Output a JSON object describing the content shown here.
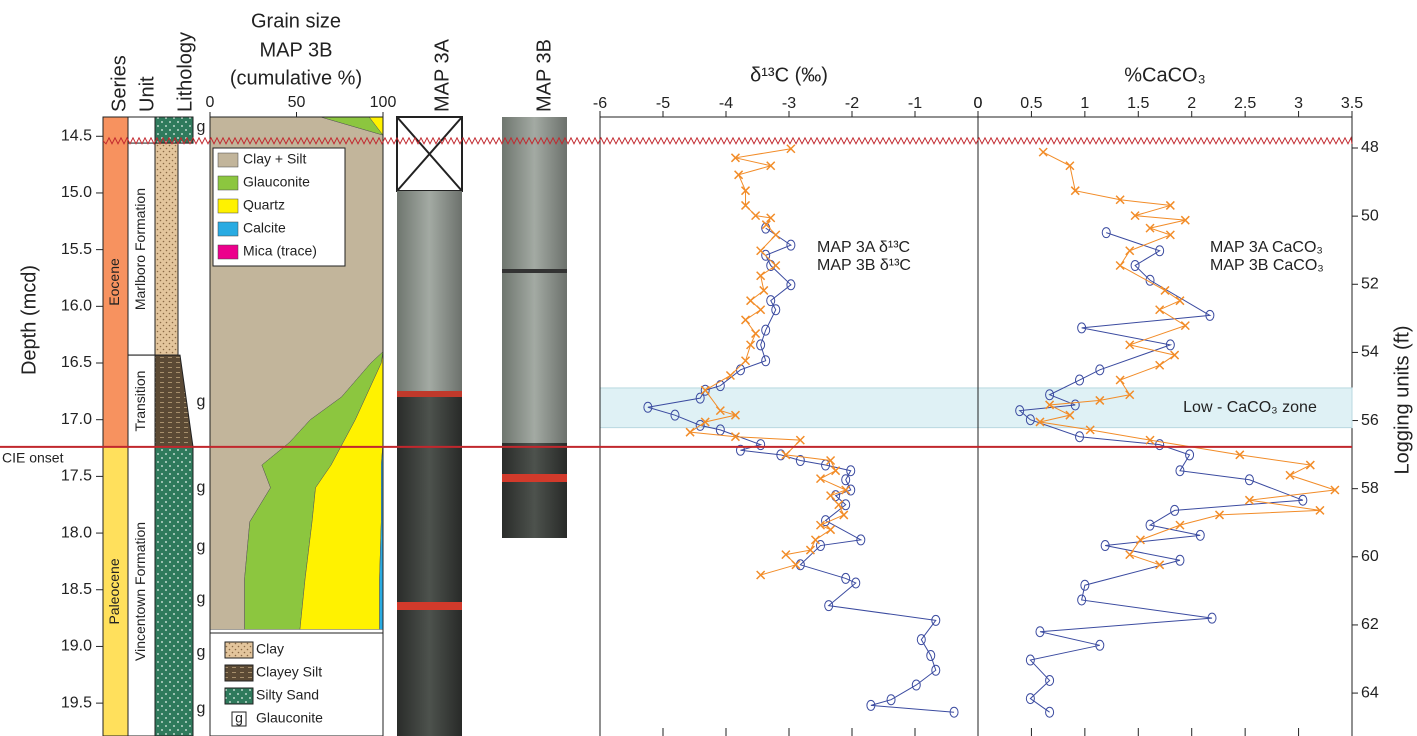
{
  "depth_axis": {
    "label": "Depth (mcd)",
    "ylim": [
      14.33,
      19.79
    ],
    "yticks": [
      14.5,
      {
        "value": 15,
        "label": "15.0"
      },
      15.5,
      {
        "value": 16,
        "label": "16.0"
      },
      16.5,
      {
        "value": 17,
        "label": "17.0"
      },
      17.5,
      {
        "value": 18,
        "label": "18.0"
      },
      18.5,
      {
        "value": 19,
        "label": "19.0"
      },
      19.5
    ]
  },
  "logging_axis": {
    "label": "Logging units (ft)",
    "y2lim": [
      47.09,
      65.26
    ],
    "y2ticks": [
      48,
      50,
      52,
      54,
      56,
      58,
      60,
      62,
      64
    ]
  },
  "cie_onset": {
    "label": "CIE onset",
    "depth": 17.24
  },
  "unconformity": {
    "depth": 14.54
  },
  "stratigraphy": {
    "headers": [
      "Series",
      "Unit",
      "Lithology"
    ],
    "series_units": [
      {
        "name": "Eocene",
        "top": 14.33,
        "base": 17.24,
        "color": "#f7925f"
      },
      {
        "name": "Paleocene",
        "top": 17.24,
        "base": 19.79,
        "color": "#ffe05c"
      }
    ],
    "formations": [
      {
        "name": "Marlboro Formation",
        "top": 14.56,
        "base": 16.43
      },
      {
        "name": "Transition",
        "top": 16.43,
        "base": 17.24
      },
      {
        "name": "Vincentown Formation",
        "top": 17.24,
        "base": 19.79
      }
    ],
    "lithology": [
      {
        "type": "Silty Sand",
        "top": 14.33,
        "base": 14.56
      },
      {
        "type": "Clay",
        "top": 14.56,
        "base": 16.43
      },
      {
        "type": "Clayey Silt",
        "top": 16.43,
        "base": 17.24
      },
      {
        "type": "Silty Sand",
        "top": 17.24,
        "base": 19.79
      }
    ],
    "glauconite_depths": [
      14.42,
      16.84,
      17.6,
      18.12,
      18.58,
      19.05,
      19.55
    ],
    "lithology_legend": [
      {
        "name": "Clay"
      },
      {
        "name": "Clayey Silt"
      },
      {
        "name": "Silty Sand"
      },
      {
        "symbol": "g",
        "name": "Glauconite"
      }
    ]
  },
  "cores": [
    {
      "name": "MAP 3A"
    },
    {
      "name": "MAP 3B"
    }
  ],
  "chart_data": [
    {
      "type": "area",
      "title": "Grain size",
      "subtitle": "MAP 3B",
      "xlabel": "(cumulative %)",
      "xlim": [
        0,
        100
      ],
      "xticks": [
        0,
        50,
        100
      ],
      "y": [
        14.33,
        14.49,
        16.4,
        16.5,
        16.8,
        17.0,
        17.2,
        17.4,
        17.6,
        17.9,
        18.4,
        18.85
      ],
      "series": [
        {
          "name": "Clay + Silt",
          "color": "#c2b59b",
          "values": [
            64,
            100,
            100,
            93,
            76,
            58,
            46,
            30,
            35,
            23,
            20,
            20
          ]
        },
        {
          "name": "Glauconite",
          "color": "#8cc63f",
          "values": [
            92,
            100,
            100,
            99,
            90,
            84,
            77,
            70,
            61,
            59,
            55,
            52
          ]
        },
        {
          "name": "Quartz",
          "color": "#fff200",
          "values": [
            100,
            100,
            100,
            100,
            100,
            100,
            100,
            99,
            99,
            99,
            98,
            98
          ]
        },
        {
          "name": "Calcite",
          "color": "#29abe2",
          "values": [
            100,
            100,
            100,
            100,
            100,
            100,
            100,
            100,
            100,
            100,
            100,
            100
          ]
        },
        {
          "name": "Mica (trace)",
          "color": "#ec008c",
          "values": [
            null,
            null,
            null,
            null,
            null,
            null,
            null,
            null,
            null,
            null,
            null,
            null
          ]
        }
      ]
    },
    {
      "type": "line",
      "title": "δ¹³C (‰)",
      "xlim": [
        -6,
        0
      ],
      "xticks": [
        -6,
        -5,
        -4,
        -3,
        -2,
        -1,
        0
      ],
      "series": [
        {
          "name": "MAP 3A δ¹³C",
          "color": "#3b4ba0",
          "marker": "circle",
          "values": [
            -3.37,
            -2.97,
            -3.37,
            -3.29,
            -2.97,
            -3.29,
            -3.21,
            -3.37,
            -3.45,
            -3.37,
            -3.77,
            -4.09,
            -4.33,
            -4.41,
            -5.24,
            -4.81,
            -4.41,
            -4.09,
            -3.45,
            -3.77,
            -3.13,
            -2.82,
            -2.42,
            -2.02,
            -2.1,
            -2.02,
            -2.26,
            -2.1,
            -2.42,
            -1.86,
            -2.5,
            -2.82,
            -2.1,
            -1.94,
            -2.37,
            -0.67,
            -0.9,
            -0.75,
            -0.67,
            -0.98,
            -1.38,
            -1.7,
            -0.38
          ],
          "depth": [
            15.31,
            15.46,
            15.55,
            15.64,
            15.81,
            15.95,
            16.03,
            16.21,
            16.34,
            16.48,
            16.56,
            16.7,
            16.74,
            16.81,
            16.89,
            16.96,
            17.05,
            17.09,
            17.22,
            17.27,
            17.31,
            17.36,
            17.4,
            17.45,
            17.53,
            17.62,
            17.67,
            17.75,
            17.89,
            18.06,
            18.11,
            18.28,
            18.4,
            18.44,
            18.64,
            18.77,
            18.94,
            19.08,
            19.21,
            19.34,
            19.47,
            19.52,
            19.58
          ]
        },
        {
          "name": "MAP 3B δ¹³C",
          "color": "#f28c28",
          "marker": "x",
          "values": [
            -2.97,
            -3.85,
            -3.29,
            -3.8,
            -3.69,
            -3.69,
            -3.53,
            -3.29,
            -3.36,
            -3.21,
            -3.45,
            -3.21,
            -3.45,
            -3.4,
            -3.61,
            -3.45,
            -3.69,
            -3.53,
            -3.61,
            -3.69,
            -3.93,
            -4.33,
            -4.09,
            -3.85,
            -4.33,
            -4.57,
            -3.85,
            -2.82,
            -3.05,
            -2.34,
            -2.26,
            -2.5,
            -2.1,
            -2.34,
            -2.21,
            -2.13,
            -2.5,
            -2.34,
            -2.58,
            -2.66,
            -3.05,
            -2.89,
            -3.45
          ],
          "depth": [
            14.61,
            14.69,
            14.76,
            14.84,
            14.98,
            15.11,
            15.2,
            15.22,
            15.28,
            15.37,
            15.51,
            15.64,
            15.73,
            15.86,
            15.95,
            16.03,
            16.12,
            16.24,
            16.34,
            16.48,
            16.61,
            16.74,
            16.92,
            16.96,
            17.02,
            17.11,
            17.15,
            17.18,
            17.31,
            17.36,
            17.45,
            17.52,
            17.62,
            17.67,
            17.75,
            17.84,
            17.93,
            17.97,
            18.06,
            18.15,
            18.19,
            18.28,
            18.37
          ]
        }
      ]
    },
    {
      "type": "line",
      "title": "%CaCO₃",
      "xlim": [
        0,
        3.5
      ],
      "xticks": [
        0,
        0.5,
        1,
        1.5,
        2,
        2.5,
        3,
        3.5
      ],
      "band": {
        "label": "Low - CaCO₃ zone",
        "top": 16.72,
        "base": 17.07
      },
      "series": [
        {
          "name": "MAP 3A CaCO₃",
          "color": "#3b4ba0",
          "marker": "circle",
          "values": [
            1.2,
            1.7,
            1.47,
            1.61,
            2.17,
            0.97,
            1.8,
            1.14,
            0.95,
            0.67,
            0.91,
            0.39,
            0.49,
            0.95,
            1.7,
            1.98,
            1.89,
            2.54,
            3.04,
            1.84,
            1.61,
            2.08,
            1.19,
            1.89,
            1.0,
            0.97,
            2.19,
            0.58,
            1.14,
            0.49,
            0.67,
            0.49,
            0.67
          ],
          "depth": [
            15.35,
            15.51,
            15.64,
            15.77,
            16.08,
            16.19,
            16.34,
            16.56,
            16.65,
            16.78,
            16.87,
            16.92,
            17.0,
            17.15,
            17.22,
            17.31,
            17.45,
            17.53,
            17.71,
            17.8,
            17.93,
            18.02,
            18.11,
            18.24,
            18.46,
            18.59,
            18.75,
            18.87,
            18.99,
            19.12,
            19.3,
            19.46,
            19.58
          ]
        },
        {
          "name": "MAP 3B CaCO₃",
          "color": "#f28c28",
          "marker": "x",
          "values": [
            0.61,
            0.86,
            0.91,
            1.33,
            1.8,
            1.47,
            1.94,
            1.61,
            1.8,
            1.42,
            1.33,
            1.75,
            1.89,
            1.7,
            1.94,
            1.42,
            1.84,
            1.7,
            1.33,
            1.42,
            1.14,
            0.67,
            0.86,
            0.58,
            1.05,
            1.61,
            2.45,
            3.11,
            2.92,
            3.34,
            2.54,
            3.2,
            2.26,
            1.89,
            1.52,
            1.42,
            1.7
          ],
          "depth": [
            14.64,
            14.76,
            14.98,
            15.06,
            15.11,
            15.2,
            15.24,
            15.31,
            15.37,
            15.51,
            15.64,
            15.86,
            15.95,
            16.03,
            16.17,
            16.34,
            16.43,
            16.52,
            16.65,
            16.78,
            16.83,
            16.87,
            16.96,
            17.02,
            17.09,
            17.18,
            17.31,
            17.4,
            17.49,
            17.62,
            17.71,
            17.8,
            17.84,
            17.93,
            18.06,
            18.19,
            18.28
          ]
        }
      ]
    }
  ]
}
